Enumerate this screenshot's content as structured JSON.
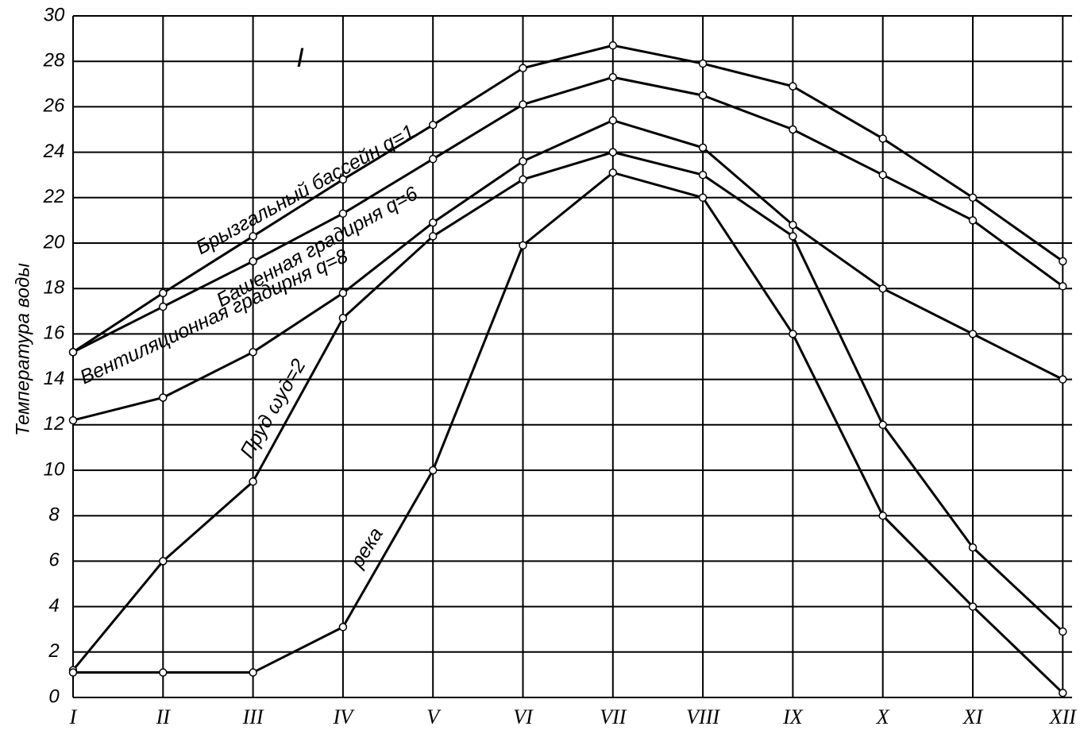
{
  "chart_data": {
    "type": "line",
    "y_label": "Температура воды",
    "annotation": "I",
    "categories": [
      "I",
      "II",
      "III",
      "IV",
      "V",
      "VI",
      "VII",
      "VIII",
      "IX",
      "X",
      "XI",
      "XII"
    ],
    "series": [
      {
        "name": "Брызгальный бассейн q=1",
        "color": "#000000",
        "values": [
          15.2,
          17.8,
          20.3,
          22.8,
          25.2,
          27.7,
          28.7,
          27.9,
          26.9,
          24.6,
          22.0,
          19.2
        ]
      },
      {
        "name": "Башенная градирня q=6",
        "color": "#000000",
        "values": [
          15.2,
          17.2,
          19.2,
          21.3,
          23.7,
          26.1,
          27.3,
          26.5,
          25.0,
          23.0,
          21.0,
          18.1
        ]
      },
      {
        "name": "Вентиляционная градирня q=8",
        "color": "#000000",
        "values": [
          12.2,
          13.2,
          15.2,
          17.8,
          20.9,
          23.6,
          25.4,
          24.2,
          20.8,
          18.0,
          16.0,
          14.0
        ]
      },
      {
        "name": "Пруд ωуд=2",
        "color": "#000000",
        "values": [
          1.2,
          6.0,
          9.5,
          16.7,
          20.3,
          22.8,
          24.0,
          23.0,
          20.3,
          12.0,
          6.6,
          2.9
        ]
      },
      {
        "name": "река",
        "color": "#000000",
        "values": [
          1.1,
          1.1,
          1.1,
          3.1,
          10.0,
          19.9,
          23.1,
          22.0,
          16.0,
          8.0,
          4.0,
          0.2
        ]
      }
    ],
    "ylim": [
      0,
      30
    ],
    "yticks": [
      0,
      2,
      4,
      6,
      8,
      10,
      12,
      14,
      16,
      18,
      20,
      22,
      24,
      26,
      28,
      30
    ],
    "grid": true
  }
}
